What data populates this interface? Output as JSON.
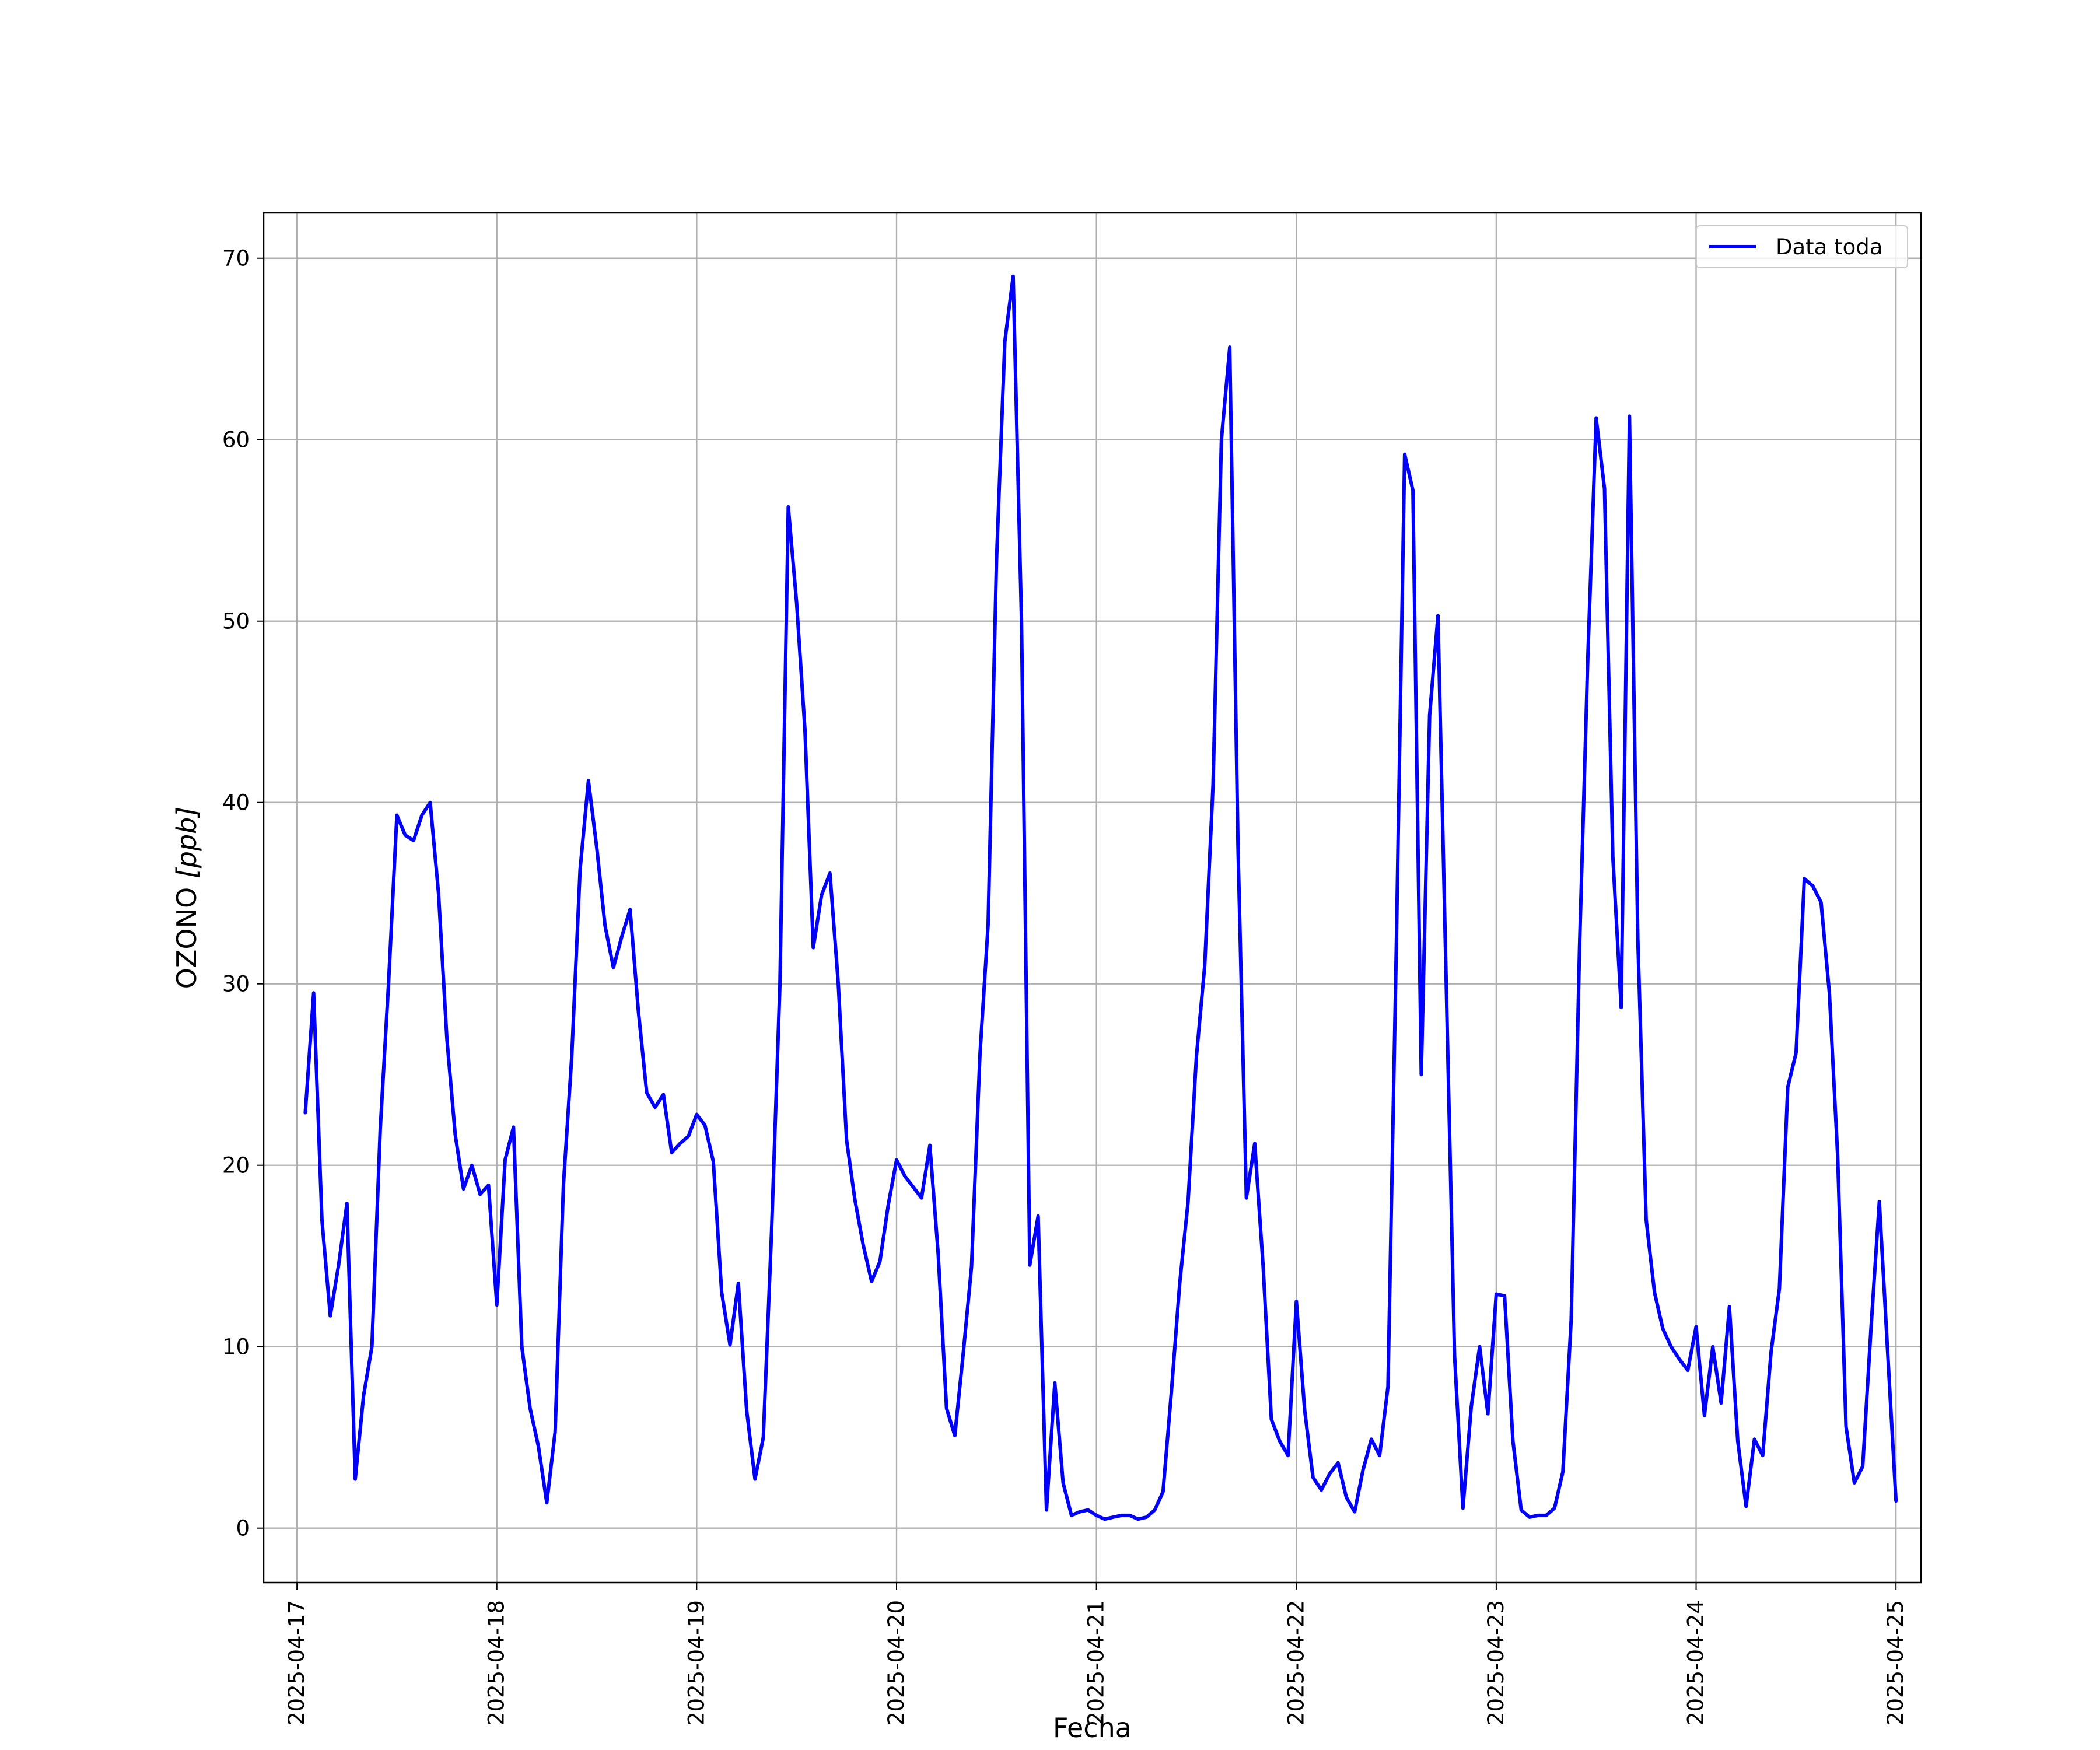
{
  "chart_data": {
    "type": "line",
    "title": "",
    "xlabel": "Fecha",
    "ylabel_text": "OZONO ",
    "ylabel_unit": "[ppb]",
    "xlim": [
      "2025-04-16T20:00",
      "2025-04-25T03:00"
    ],
    "ylim": [
      -3,
      72.5
    ],
    "x_ticks": [
      "2025-04-17",
      "2025-04-18",
      "2025-04-19",
      "2025-04-20",
      "2025-04-21",
      "2025-04-22",
      "2025-04-23",
      "2025-04-24",
      "2025-04-25"
    ],
    "y_ticks": [
      0,
      10,
      20,
      30,
      40,
      50,
      60,
      70
    ],
    "grid": true,
    "legend_position": "top-right",
    "colors": {
      "series": "#0000ff",
      "grid": "#b0b0b0",
      "axis": "#000000"
    },
    "series": [
      {
        "name": "Data toda",
        "points": [
          [
            "2025-04-17T01:00",
            22.9
          ],
          [
            "2025-04-17T02:00",
            29.5
          ],
          [
            "2025-04-17T03:00",
            17.0
          ],
          [
            "2025-04-17T04:00",
            11.7
          ],
          [
            "2025-04-17T05:00",
            14.5
          ],
          [
            "2025-04-17T06:00",
            17.9
          ],
          [
            "2025-04-17T07:00",
            2.7
          ],
          [
            "2025-04-17T08:00",
            7.3
          ],
          [
            "2025-04-17T09:00",
            10.0
          ],
          [
            "2025-04-17T10:00",
            22.0
          ],
          [
            "2025-04-17T11:00",
            30.0
          ],
          [
            "2025-04-17T12:00",
            39.3
          ],
          [
            "2025-04-17T13:00",
            38.2
          ],
          [
            "2025-04-17T14:00",
            37.9
          ],
          [
            "2025-04-17T15:00",
            39.3
          ],
          [
            "2025-04-17T16:00",
            40.0
          ],
          [
            "2025-04-17T17:00",
            35.0
          ],
          [
            "2025-04-17T18:00",
            27.0
          ],
          [
            "2025-04-17T19:00",
            21.7
          ],
          [
            "2025-04-17T20:00",
            18.7
          ],
          [
            "2025-04-17T21:00",
            20.0
          ],
          [
            "2025-04-17T22:00",
            18.4
          ],
          [
            "2025-04-17T23:00",
            18.9
          ],
          [
            "2025-04-18T00:00",
            12.3
          ],
          [
            "2025-04-18T01:00",
            20.3
          ],
          [
            "2025-04-18T02:00",
            22.1
          ],
          [
            "2025-04-18T03:00",
            10.0
          ],
          [
            "2025-04-18T04:00",
            6.6
          ],
          [
            "2025-04-18T05:00",
            4.5
          ],
          [
            "2025-04-18T06:00",
            1.4
          ],
          [
            "2025-04-18T07:00",
            5.3
          ],
          [
            "2025-04-18T08:00",
            18.9
          ],
          [
            "2025-04-18T09:00",
            26.0
          ],
          [
            "2025-04-18T10:00",
            36.3
          ],
          [
            "2025-04-18T11:00",
            41.2
          ],
          [
            "2025-04-18T12:00",
            37.5
          ],
          [
            "2025-04-18T13:00",
            33.2
          ],
          [
            "2025-04-18T14:00",
            30.9
          ],
          [
            "2025-04-18T15:00",
            32.6
          ],
          [
            "2025-04-18T16:00",
            34.1
          ],
          [
            "2025-04-18T17:00",
            28.5
          ],
          [
            "2025-04-18T18:00",
            24.0
          ],
          [
            "2025-04-18T19:00",
            23.2
          ],
          [
            "2025-04-18T20:00",
            23.9
          ],
          [
            "2025-04-18T21:00",
            20.7
          ],
          [
            "2025-04-18T22:00",
            21.2
          ],
          [
            "2025-04-18T23:00",
            21.6
          ],
          [
            "2025-04-19T00:00",
            22.8
          ],
          [
            "2025-04-19T01:00",
            22.2
          ],
          [
            "2025-04-19T02:00",
            20.2
          ],
          [
            "2025-04-19T03:00",
            13.0
          ],
          [
            "2025-04-19T04:00",
            10.1
          ],
          [
            "2025-04-19T05:00",
            13.5
          ],
          [
            "2025-04-19T06:00",
            6.5
          ],
          [
            "2025-04-19T07:00",
            2.7
          ],
          [
            "2025-04-19T08:00",
            5.0
          ],
          [
            "2025-04-19T09:00",
            16.5
          ],
          [
            "2025-04-19T10:00",
            30.0
          ],
          [
            "2025-04-19T11:00",
            56.3
          ],
          [
            "2025-04-19T12:00",
            51.0
          ],
          [
            "2025-04-19T13:00",
            44.0
          ],
          [
            "2025-04-19T14:00",
            32.0
          ],
          [
            "2025-04-19T15:00",
            34.9
          ],
          [
            "2025-04-19T16:00",
            36.1
          ],
          [
            "2025-04-19T17:00",
            30.0
          ],
          [
            "2025-04-19T18:00",
            21.4
          ],
          [
            "2025-04-19T19:00",
            18.1
          ],
          [
            "2025-04-19T20:00",
            15.6
          ],
          [
            "2025-04-19T21:00",
            13.6
          ],
          [
            "2025-04-19T22:00",
            14.7
          ],
          [
            "2025-04-19T23:00",
            17.8
          ],
          [
            "2025-04-20T00:00",
            20.3
          ],
          [
            "2025-04-20T01:00",
            19.4
          ],
          [
            "2025-04-20T02:00",
            18.8
          ],
          [
            "2025-04-20T03:00",
            18.2
          ],
          [
            "2025-04-20T04:00",
            21.1
          ],
          [
            "2025-04-20T05:00",
            15.1
          ],
          [
            "2025-04-20T06:00",
            6.6
          ],
          [
            "2025-04-20T07:00",
            5.1
          ],
          [
            "2025-04-20T08:00",
            9.6
          ],
          [
            "2025-04-20T09:00",
            14.4
          ],
          [
            "2025-04-20T10:00",
            26.0
          ],
          [
            "2025-04-20T11:00",
            33.3
          ],
          [
            "2025-04-20T12:00",
            53.3
          ],
          [
            "2025-04-20T13:00",
            65.4
          ],
          [
            "2025-04-20T14:00",
            69.0
          ],
          [
            "2025-04-20T15:00",
            50.0
          ],
          [
            "2025-04-20T16:00",
            14.5
          ],
          [
            "2025-04-20T17:00",
            17.2
          ],
          [
            "2025-04-20T18:00",
            1.0
          ],
          [
            "2025-04-20T19:00",
            8.0
          ],
          [
            "2025-04-20T20:00",
            2.5
          ],
          [
            "2025-04-20T21:00",
            0.7
          ],
          [
            "2025-04-20T22:00",
            0.9
          ],
          [
            "2025-04-20T23:00",
            1.0
          ],
          [
            "2025-04-21T00:00",
            0.7
          ],
          [
            "2025-04-21T01:00",
            0.5
          ],
          [
            "2025-04-21T02:00",
            0.6
          ],
          [
            "2025-04-21T03:00",
            0.7
          ],
          [
            "2025-04-21T04:00",
            0.7
          ],
          [
            "2025-04-21T05:00",
            0.5
          ],
          [
            "2025-04-21T06:00",
            0.6
          ],
          [
            "2025-04-21T07:00",
            1.0
          ],
          [
            "2025-04-21T08:00",
            2.0
          ],
          [
            "2025-04-21T09:00",
            7.5
          ],
          [
            "2025-04-21T10:00",
            13.5
          ],
          [
            "2025-04-21T11:00",
            18.0
          ],
          [
            "2025-04-21T12:00",
            26.0
          ],
          [
            "2025-04-21T13:00",
            31.0
          ],
          [
            "2025-04-21T14:00",
            41.0
          ],
          [
            "2025-04-21T15:00",
            60.0
          ],
          [
            "2025-04-21T16:00",
            65.1
          ],
          [
            "2025-04-21T17:00",
            37.5
          ],
          [
            "2025-04-21T18:00",
            18.2
          ],
          [
            "2025-04-21T19:00",
            21.2
          ],
          [
            "2025-04-21T20:00",
            14.5
          ],
          [
            "2025-04-21T21:00",
            6.0
          ],
          [
            "2025-04-21T22:00",
            4.8
          ],
          [
            "2025-04-21T23:00",
            4.0
          ],
          [
            "2025-04-22T00:00",
            12.5
          ],
          [
            "2025-04-22T01:00",
            6.5
          ],
          [
            "2025-04-22T02:00",
            2.8
          ],
          [
            "2025-04-22T03:00",
            2.1
          ],
          [
            "2025-04-22T04:00",
            3.0
          ],
          [
            "2025-04-22T05:00",
            3.6
          ],
          [
            "2025-04-22T06:00",
            1.7
          ],
          [
            "2025-04-22T07:00",
            0.9
          ],
          [
            "2025-04-22T08:00",
            3.2
          ],
          [
            "2025-04-22T09:00",
            4.9
          ],
          [
            "2025-04-22T10:00",
            4.0
          ],
          [
            "2025-04-22T11:00",
            7.8
          ],
          [
            "2025-04-22T12:00",
            32.0
          ],
          [
            "2025-04-22T13:00",
            59.2
          ],
          [
            "2025-04-22T14:00",
            57.2
          ],
          [
            "2025-04-22T15:00",
            25.0
          ],
          [
            "2025-04-22T16:00",
            44.8
          ],
          [
            "2025-04-22T17:00",
            50.3
          ],
          [
            "2025-04-22T18:00",
            30.0
          ],
          [
            "2025-04-22T19:00",
            9.5
          ],
          [
            "2025-04-22T20:00",
            1.1
          ],
          [
            "2025-04-22T21:00",
            6.7
          ],
          [
            "2025-04-22T22:00",
            10.0
          ],
          [
            "2025-04-22T23:00",
            6.3
          ],
          [
            "2025-04-23T00:00",
            12.9
          ],
          [
            "2025-04-23T01:00",
            12.8
          ],
          [
            "2025-04-23T02:00",
            4.8
          ],
          [
            "2025-04-23T03:00",
            1.0
          ],
          [
            "2025-04-23T04:00",
            0.6
          ],
          [
            "2025-04-23T05:00",
            0.7
          ],
          [
            "2025-04-23T06:00",
            0.7
          ],
          [
            "2025-04-23T07:00",
            1.1
          ],
          [
            "2025-04-23T08:00",
            3.1
          ],
          [
            "2025-04-23T09:00",
            11.5
          ],
          [
            "2025-04-23T10:00",
            32.0
          ],
          [
            "2025-04-23T11:00",
            48.0
          ],
          [
            "2025-04-23T12:00",
            61.2
          ],
          [
            "2025-04-23T13:00",
            57.3
          ],
          [
            "2025-04-23T14:00",
            37.0
          ],
          [
            "2025-04-23T15:00",
            28.7
          ],
          [
            "2025-04-23T16:00",
            61.3
          ],
          [
            "2025-04-23T17:00",
            32.5
          ],
          [
            "2025-04-23T18:00",
            17.0
          ],
          [
            "2025-04-23T19:00",
            13.0
          ],
          [
            "2025-04-23T20:00",
            11.0
          ],
          [
            "2025-04-23T21:00",
            10.0
          ],
          [
            "2025-04-23T22:00",
            9.3
          ],
          [
            "2025-04-23T23:00",
            8.7
          ],
          [
            "2025-04-24T00:00",
            11.1
          ],
          [
            "2025-04-24T01:00",
            6.2
          ],
          [
            "2025-04-24T02:00",
            10.0
          ],
          [
            "2025-04-24T03:00",
            6.9
          ],
          [
            "2025-04-24T04:00",
            12.2
          ],
          [
            "2025-04-24T05:00",
            4.8
          ],
          [
            "2025-04-24T06:00",
            1.2
          ],
          [
            "2025-04-24T07:00",
            4.9
          ],
          [
            "2025-04-24T08:00",
            4.0
          ],
          [
            "2025-04-24T09:00",
            9.7
          ],
          [
            "2025-04-24T10:00",
            13.2
          ],
          [
            "2025-04-24T11:00",
            24.3
          ],
          [
            "2025-04-24T12:00",
            26.2
          ],
          [
            "2025-04-24T13:00",
            35.8
          ],
          [
            "2025-04-24T14:00",
            35.4
          ],
          [
            "2025-04-24T15:00",
            34.5
          ],
          [
            "2025-04-24T16:00",
            29.5
          ],
          [
            "2025-04-24T17:00",
            20.5
          ],
          [
            "2025-04-24T18:00",
            5.6
          ],
          [
            "2025-04-24T19:00",
            2.5
          ],
          [
            "2025-04-24T20:00",
            3.4
          ],
          [
            "2025-04-24T21:00",
            11.0
          ],
          [
            "2025-04-24T22:00",
            18.0
          ],
          [
            "2025-04-24T23:00",
            9.7
          ],
          [
            "2025-04-25T00:00",
            1.5
          ]
        ]
      }
    ]
  }
}
